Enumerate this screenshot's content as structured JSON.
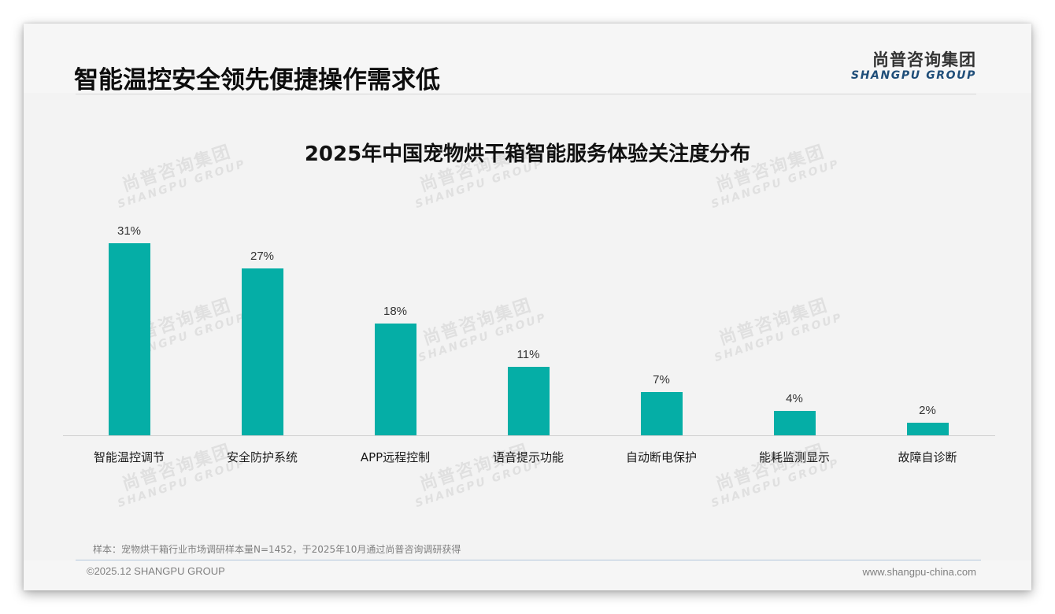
{
  "header": {
    "title": "智能温控安全领先便捷操作需求低",
    "logo_cn": "尚普咨询集团",
    "logo_en": "SHANGPU GROUP"
  },
  "watermark": {
    "cn": "尚普咨询集团",
    "en": "SHANGPU GROUP"
  },
  "colors": {
    "bar": "#05aea6",
    "title": "#0d0d0d",
    "logo_en": "#1f4e79"
  },
  "chart_data": {
    "type": "bar",
    "title": "2025年中国宠物烘干箱智能服务体验关注度分布",
    "categories": [
      "智能温控调节",
      "安全防护系统",
      "APP远程控制",
      "语音提示功能",
      "自动断电保护",
      "能耗监测显示",
      "故障自诊断"
    ],
    "values": [
      31,
      27,
      18,
      11,
      7,
      4,
      2
    ],
    "value_labels": [
      "31%",
      "27%",
      "18%",
      "11%",
      "7%",
      "4%",
      "2%"
    ],
    "unit": "%",
    "xlabel": "",
    "ylabel": "",
    "ylim": [
      0,
      31
    ],
    "grid": false,
    "legend": null
  },
  "footer": {
    "note": "样本：宠物烘干箱行业市场调研样本量N=1452，于2025年10月通过尚普咨询调研获得",
    "copyright": "©2025.12 SHANGPU GROUP",
    "website": "www.shangpu-china.com"
  }
}
